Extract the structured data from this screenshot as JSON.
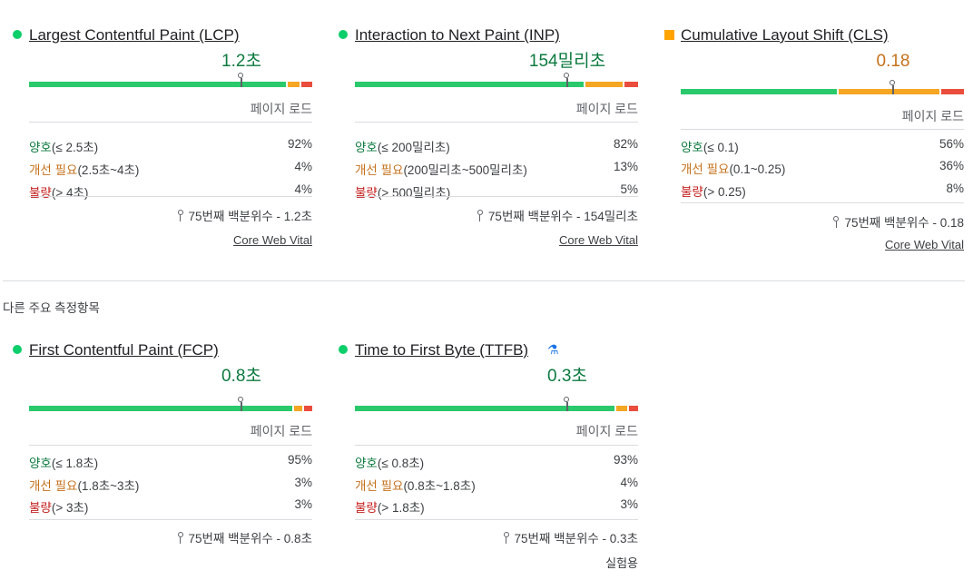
{
  "core_cards": [
    {
      "id": "lcp",
      "status": "good",
      "title": "Largest Contentful Paint (LCP)",
      "value": "1.2초",
      "section_label": "페이지 로드",
      "distribution": [
        {
          "word": "양호",
          "range": "(≤ 2.5초)",
          "percent": "92%"
        },
        {
          "word": "개선 필요",
          "range": "(2.5초~4초)",
          "percent": "4%"
        },
        {
          "word": "불량",
          "range": "(> 4초)",
          "percent": "4%"
        }
      ],
      "p75": "75번째 백분위수 - 1.2초",
      "footer": "Core Web Vital"
    },
    {
      "id": "inp",
      "status": "good",
      "title": "Interaction to Next Paint (INP)",
      "value": "154밀리초",
      "section_label": "페이지 로드",
      "distribution": [
        {
          "word": "양호",
          "range": "(≤ 200밀리초)",
          "percent": "82%"
        },
        {
          "word": "개선 필요",
          "range": "(200밀리초~500밀리초)",
          "percent": "13%"
        },
        {
          "word": "불량",
          "range": "(> 500밀리초)",
          "percent": "5%"
        }
      ],
      "p75": "75번째 백분위수 - 154밀리초",
      "footer": "Core Web Vital"
    },
    {
      "id": "cls",
      "status": "needs-improvement",
      "title": "Cumulative Layout Shift (CLS)",
      "value": "0.18",
      "section_label": "페이지 로드",
      "distribution": [
        {
          "word": "양호",
          "range": "(≤ 0.1)",
          "percent": "56%"
        },
        {
          "word": "개선 필요",
          "range": "(0.1~0.25)",
          "percent": "36%"
        },
        {
          "word": "불량",
          "range": "(> 0.25)",
          "percent": "8%"
        }
      ],
      "p75": "75번째 백분위수 - 0.18",
      "footer": "Core Web Vital"
    }
  ],
  "other_label": "다른 주요 측정항목",
  "other_cards": [
    {
      "id": "fcp",
      "status": "good",
      "title": "First Contentful Paint (FCP)",
      "value": "0.8초",
      "section_label": "페이지 로드",
      "distribution": [
        {
          "word": "양호",
          "range": "(≤ 1.8초)",
          "percent": "95%"
        },
        {
          "word": "개선 필요",
          "range": "(1.8초~3초)",
          "percent": "3%"
        },
        {
          "word": "불량",
          "range": "(> 3초)",
          "percent": "3%"
        }
      ],
      "p75": "75번째 백분위수 - 0.8초"
    },
    {
      "id": "ttfb",
      "status": "good",
      "title": "Time to First Byte (TTFB)",
      "lab_icon": "flask-icon",
      "value": "0.3초",
      "section_label": "페이지 로드",
      "distribution": [
        {
          "word": "양호",
          "range": "(≤ 0.8초)",
          "percent": "93%"
        },
        {
          "word": "개선 필요",
          "range": "(0.8초~1.8초)",
          "percent": "4%"
        },
        {
          "word": "불량",
          "range": "(> 1.8초)",
          "percent": "3%"
        }
      ],
      "p75": "75번째 백분위수 - 0.3초",
      "footer_text": "실험용"
    }
  ],
  "colors": {
    "good": "#2ac96b",
    "needs_improvement": "#f5a623",
    "poor": "#ea4d3c"
  }
}
